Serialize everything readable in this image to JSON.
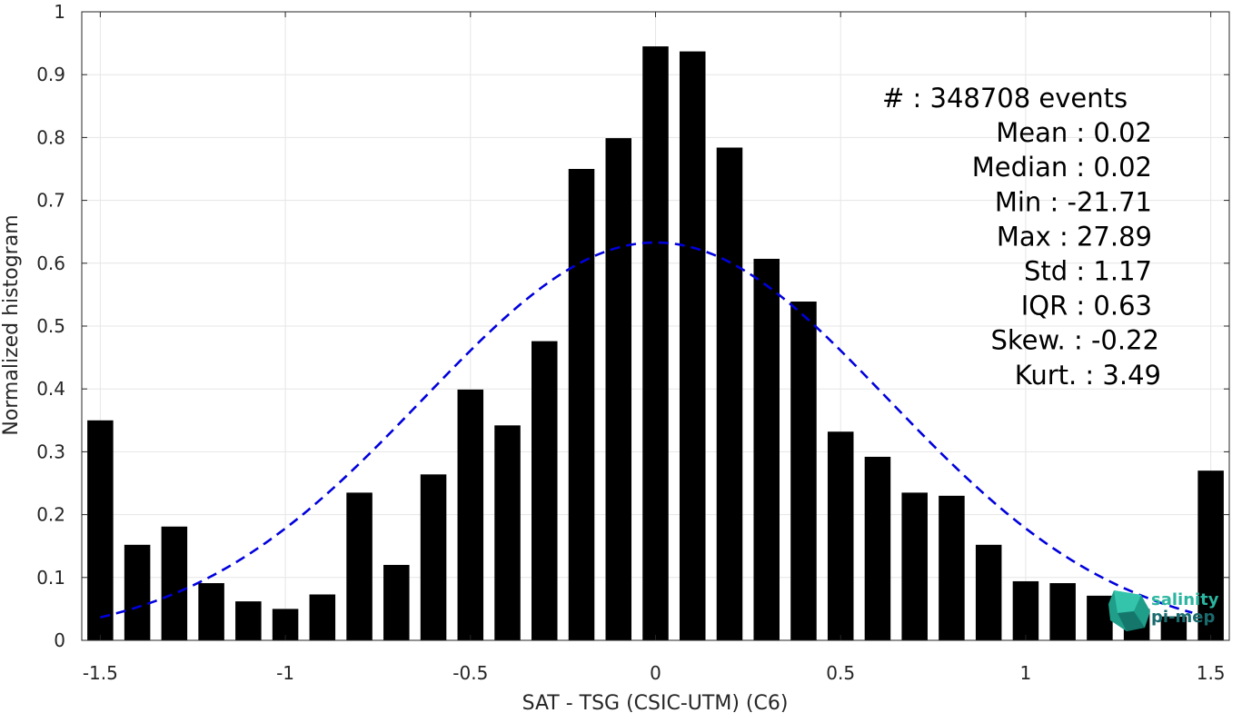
{
  "chart_data": {
    "type": "bar",
    "xlabel": "SAT - TSG (CSIC-UTM) (C6)",
    "ylabel": "Normalized histogram",
    "xlim": [
      -1.55,
      1.55
    ],
    "ylim": [
      0,
      1
    ],
    "grid": true,
    "xticks": [
      -1.5,
      -1,
      -0.5,
      0,
      0.5,
      1,
      1.5
    ],
    "xtick_labels": [
      "-1.5",
      "-1",
      "-0.5",
      "0",
      "0.5",
      "1",
      "1.5"
    ],
    "yticks": [
      0,
      0.1,
      0.2,
      0.3,
      0.4,
      0.5,
      0.6,
      0.7,
      0.8,
      0.9,
      1
    ],
    "ytick_labels": [
      "0",
      "0.1",
      "0.2",
      "0.3",
      "0.4",
      "0.5",
      "0.6",
      "0.7",
      "0.8",
      "0.9",
      "1"
    ],
    "bar_color": "#000000",
    "bar_width": 0.07,
    "x": [
      -1.5,
      -1.4,
      -1.3,
      -1.2,
      -1.1,
      -1.0,
      -0.9,
      -0.8,
      -0.7,
      -0.6,
      -0.5,
      -0.4,
      -0.3,
      -0.2,
      -0.1,
      0.0,
      0.1,
      0.2,
      0.3,
      0.4,
      0.5,
      0.6,
      0.7,
      0.8,
      0.9,
      1.0,
      1.1,
      1.2,
      1.3,
      1.4,
      1.5
    ],
    "values": [
      0.35,
      0.152,
      0.181,
      0.091,
      0.062,
      0.05,
      0.073,
      0.235,
      0.12,
      0.264,
      0.399,
      0.342,
      0.476,
      0.75,
      0.799,
      0.945,
      0.937,
      0.784,
      0.607,
      0.539,
      0.332,
      0.292,
      0.235,
      0.23,
      0.152,
      0.094,
      0.091,
      0.071,
      0.05,
      0.038,
      0.27
    ],
    "fit_curve": {
      "style": "dashed",
      "color": "#0000dd",
      "mean": 0.0,
      "peak": 0.633,
      "sigma": 0.628,
      "x_range": [
        -1.5,
        1.45
      ]
    },
    "stats": [
      {
        "key": "#",
        "value": ": 348708 events"
      },
      {
        "key": "Mean",
        "value": ": 0.02"
      },
      {
        "key": "Median",
        "value": ": 0.02"
      },
      {
        "key": "Min",
        "value": ": -21.71"
      },
      {
        "key": "Max",
        "value": ": 27.89"
      },
      {
        "key": "Std",
        "value": ": 1.17"
      },
      {
        "key": "IQR",
        "value": ": 0.63"
      },
      {
        "key": "Skew.",
        "value": ": -0.22"
      },
      {
        "key": "Kurt.",
        "value": ": 3.49"
      }
    ]
  },
  "logo": {
    "line1": "salinity",
    "line2": "pi-mep",
    "color1": "#2bb5a0",
    "color2": "#1a6b6e"
  }
}
